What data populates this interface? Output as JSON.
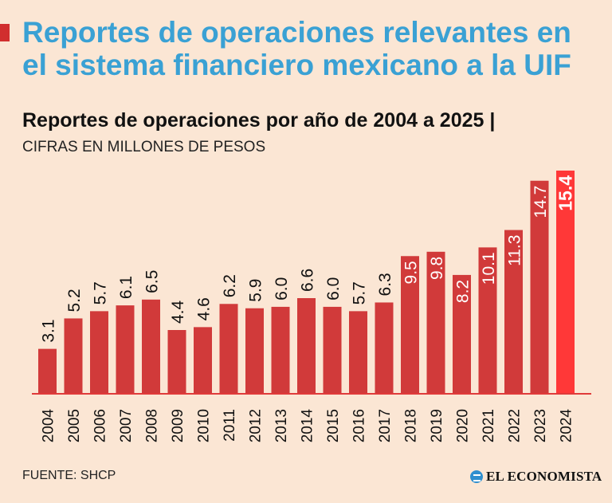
{
  "header": {
    "title": "Reportes de operaciones relevantes en el sistema financiero mexicano a la UIF",
    "subtitle": "Reportes de operaciones por año de 2004 a 2025 |",
    "units": "CIFRAS EN MILLONES DE PESOS"
  },
  "footer": {
    "source": "FUENTE: SHCP",
    "brand": "EL ECONOMISTA"
  },
  "colors": {
    "background": "#fbe6d4",
    "title": "#3aa1d4",
    "bar": "#d13a3a",
    "highlight_bar": "#ff3838",
    "axis": "#e03a3a"
  },
  "chart_data": {
    "type": "bar",
    "title": "Reportes de operaciones por año de 2004 a 2025",
    "xlabel": "",
    "ylabel": "",
    "categories": [
      "2004",
      "2005",
      "2006",
      "2007",
      "2008",
      "2009",
      "2010",
      "2011",
      "2012",
      "2013",
      "2014",
      "2015",
      "2016",
      "2017",
      "2018",
      "2019",
      "2020",
      "2021",
      "2022",
      "2023",
      "2024"
    ],
    "values": [
      3.1,
      5.2,
      5.7,
      6.1,
      6.5,
      4.4,
      4.6,
      6.2,
      5.9,
      6.0,
      6.6,
      6.0,
      5.7,
      6.3,
      9.5,
      9.8,
      8.2,
      10.1,
      11.3,
      14.7,
      15.4
    ],
    "labels": [
      "3.1",
      "5.2",
      "5.7",
      "6.1",
      "6.5",
      "4.4",
      "4.6",
      "6.2",
      "5.9",
      "6.0",
      "6.6",
      "6.0",
      "5.7",
      "6.3",
      "9.5",
      "9.8",
      "8.2",
      "10.1",
      "11.3",
      "14.7",
      "15.4"
    ],
    "highlight_category": "2024",
    "ylim": [
      0,
      15.4
    ],
    "grid": false,
    "legend": "none"
  }
}
